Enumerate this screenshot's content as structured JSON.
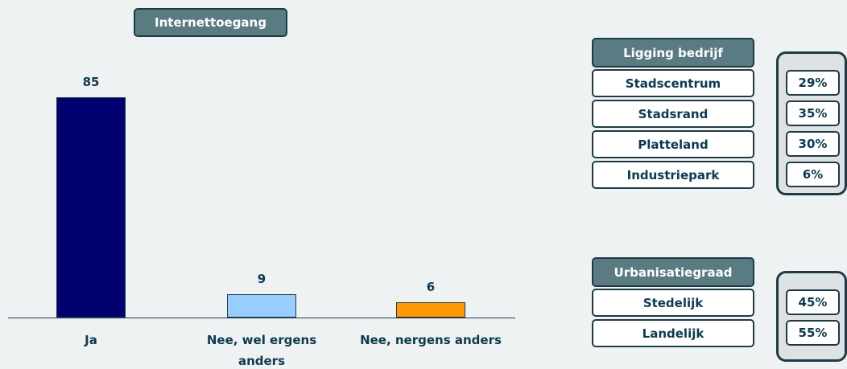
{
  "chart_data": {
    "type": "bar",
    "title": "Internettoegang",
    "categories": [
      "Ja",
      "Nee, wel ergens anders",
      "Nee, nergens anders"
    ],
    "values": [
      85,
      9,
      6
    ],
    "colors": [
      "#00006e",
      "#99ccff",
      "#ff9900"
    ],
    "tables": [
      {
        "title": "Ligging bedrijf",
        "rows": [
          [
            "Stadscentrum",
            "29%"
          ],
          [
            "Stadsrand",
            "35%"
          ],
          [
            "Platteland",
            "30%"
          ],
          [
            "Industriepark",
            "6%"
          ]
        ]
      },
      {
        "title": "Urbanisatiegraad",
        "rows": [
          [
            "Stedelijk",
            "45%"
          ],
          [
            "Landelijk",
            "55%"
          ]
        ]
      }
    ]
  }
}
